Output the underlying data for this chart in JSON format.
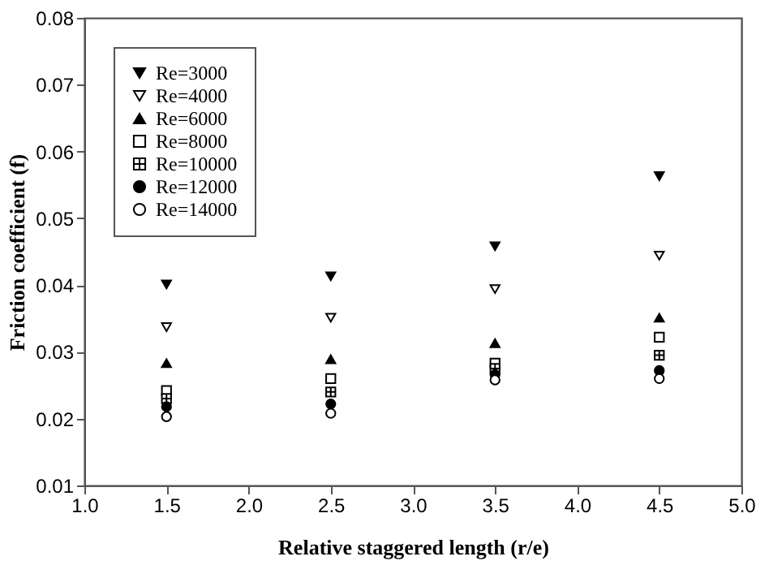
{
  "chart_data": {
    "type": "scatter",
    "xlabel": "Relative staggered length (r/e)",
    "ylabel": "Friction coefficient (f)",
    "x": [
      1.5,
      2.5,
      3.5,
      4.5
    ],
    "series": [
      {
        "name": "Re=3000",
        "color": "#000000",
        "marker": "triangle-down",
        "values": [
          0.0401,
          0.0413,
          0.0458,
          0.0563
        ]
      },
      {
        "name": "Re=4000",
        "color": "#000000",
        "marker": "triangle-down-open",
        "values": [
          0.0337,
          0.0351,
          0.0394,
          0.0444
        ]
      },
      {
        "name": "Re=6000",
        "color": "#000000",
        "marker": "triangle",
        "values": [
          0.0283,
          0.0289,
          0.0313,
          0.0351
        ]
      },
      {
        "name": "Re=8000",
        "color": "#000000",
        "marker": "square-open",
        "values": [
          0.0242,
          0.026,
          0.0283,
          0.0322
        ]
      },
      {
        "name": "Re=10000",
        "color": "#000000",
        "marker": "cross",
        "values": [
          0.023,
          0.024,
          0.0275,
          0.0295
        ]
      },
      {
        "name": "Re=12000",
        "color": "#000000",
        "marker": "circle",
        "values": [
          0.0218,
          0.0222,
          0.0266,
          0.0272
        ]
      },
      {
        "name": "Re=14000",
        "color": "#000000",
        "marker": "circle-open",
        "values": [
          0.0203,
          0.0208,
          0.0258,
          0.026
        ]
      }
    ],
    "xlim": [
      1.0,
      5.0
    ],
    "ylim": [
      0.01,
      0.08
    ],
    "xticks": [
      {
        "value": 1,
        "label": "1.0"
      },
      1.5,
      {
        "value": 2,
        "label": "2.0"
      },
      2.5,
      {
        "value": 3,
        "label": "3.0"
      },
      3.5,
      {
        "value": 4,
        "label": "4.0"
      },
      4.5,
      {
        "value": 5,
        "label": "5.0"
      }
    ],
    "yticks": [
      0.01,
      0.02,
      0.03,
      0.04,
      0.05,
      0.06,
      0.07,
      0.08
    ],
    "legend": "top left",
    "grid": false
  }
}
